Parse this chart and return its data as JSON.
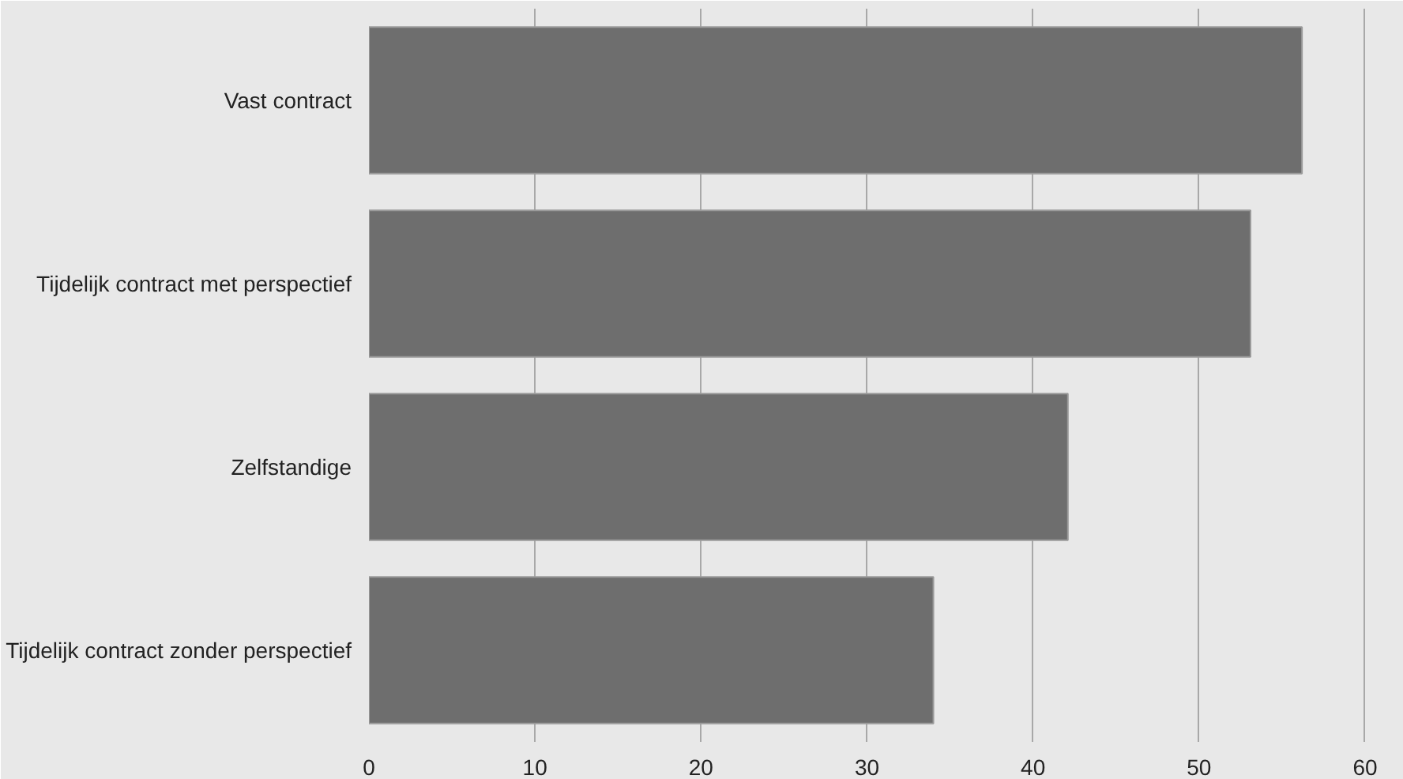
{
  "chart_data": {
    "type": "bar",
    "orientation": "horizontal",
    "categories": [
      "Vast contract",
      "Tijdelijk contract met perspectief",
      "Zelfstandige",
      "Tijdelijk contract zonder perspectief"
    ],
    "values": [
      56.2,
      53.1,
      42.1,
      34.0
    ],
    "color": "#6e6e6e",
    "xlim": [
      0,
      61
    ],
    "xticks": [
      0,
      10,
      20,
      30,
      40,
      50,
      60
    ],
    "grid": "x"
  }
}
